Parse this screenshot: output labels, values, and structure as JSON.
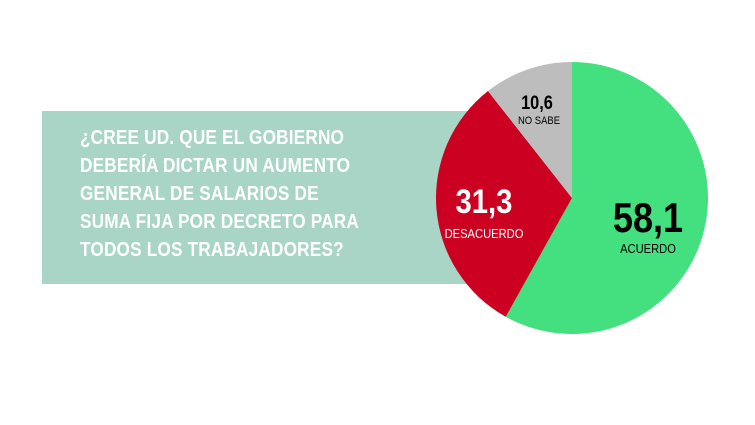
{
  "question": "¿CREE UD. QUE EL GOBIERNO DEBERÍA DICTAR UN AUMENTO GENERAL DE SALARIOS DE SUMA FIJA POR DECRETO PARA TODOS LOS TRABAJADORES?",
  "colors": {
    "panel": "#a8d5c6",
    "acuerdo": "#44e080",
    "desacuerdo": "#cc0020",
    "no_sabe": "#bdbdbd"
  },
  "chart_data": {
    "type": "pie",
    "title": "¿CREE UD. QUE EL GOBIERNO DEBERÍA DICTAR UN AUMENTO GENERAL DE SALARIOS DE SUMA FIJA POR DECRETO PARA TODOS LOS TRABAJADORES?",
    "slices": [
      {
        "label": "ACUERDO",
        "value": 58.1,
        "value_text": "58,1",
        "color": "#44e080",
        "text_color": "#000000"
      },
      {
        "label": "DESACUERDO",
        "value": 31.3,
        "value_text": "31,3",
        "color": "#cc0020",
        "text_color": "#ffffff"
      },
      {
        "label": "NO SABE",
        "value": 10.6,
        "value_text": "10,6",
        "color": "#bdbdbd",
        "text_color": "#000000"
      }
    ]
  }
}
